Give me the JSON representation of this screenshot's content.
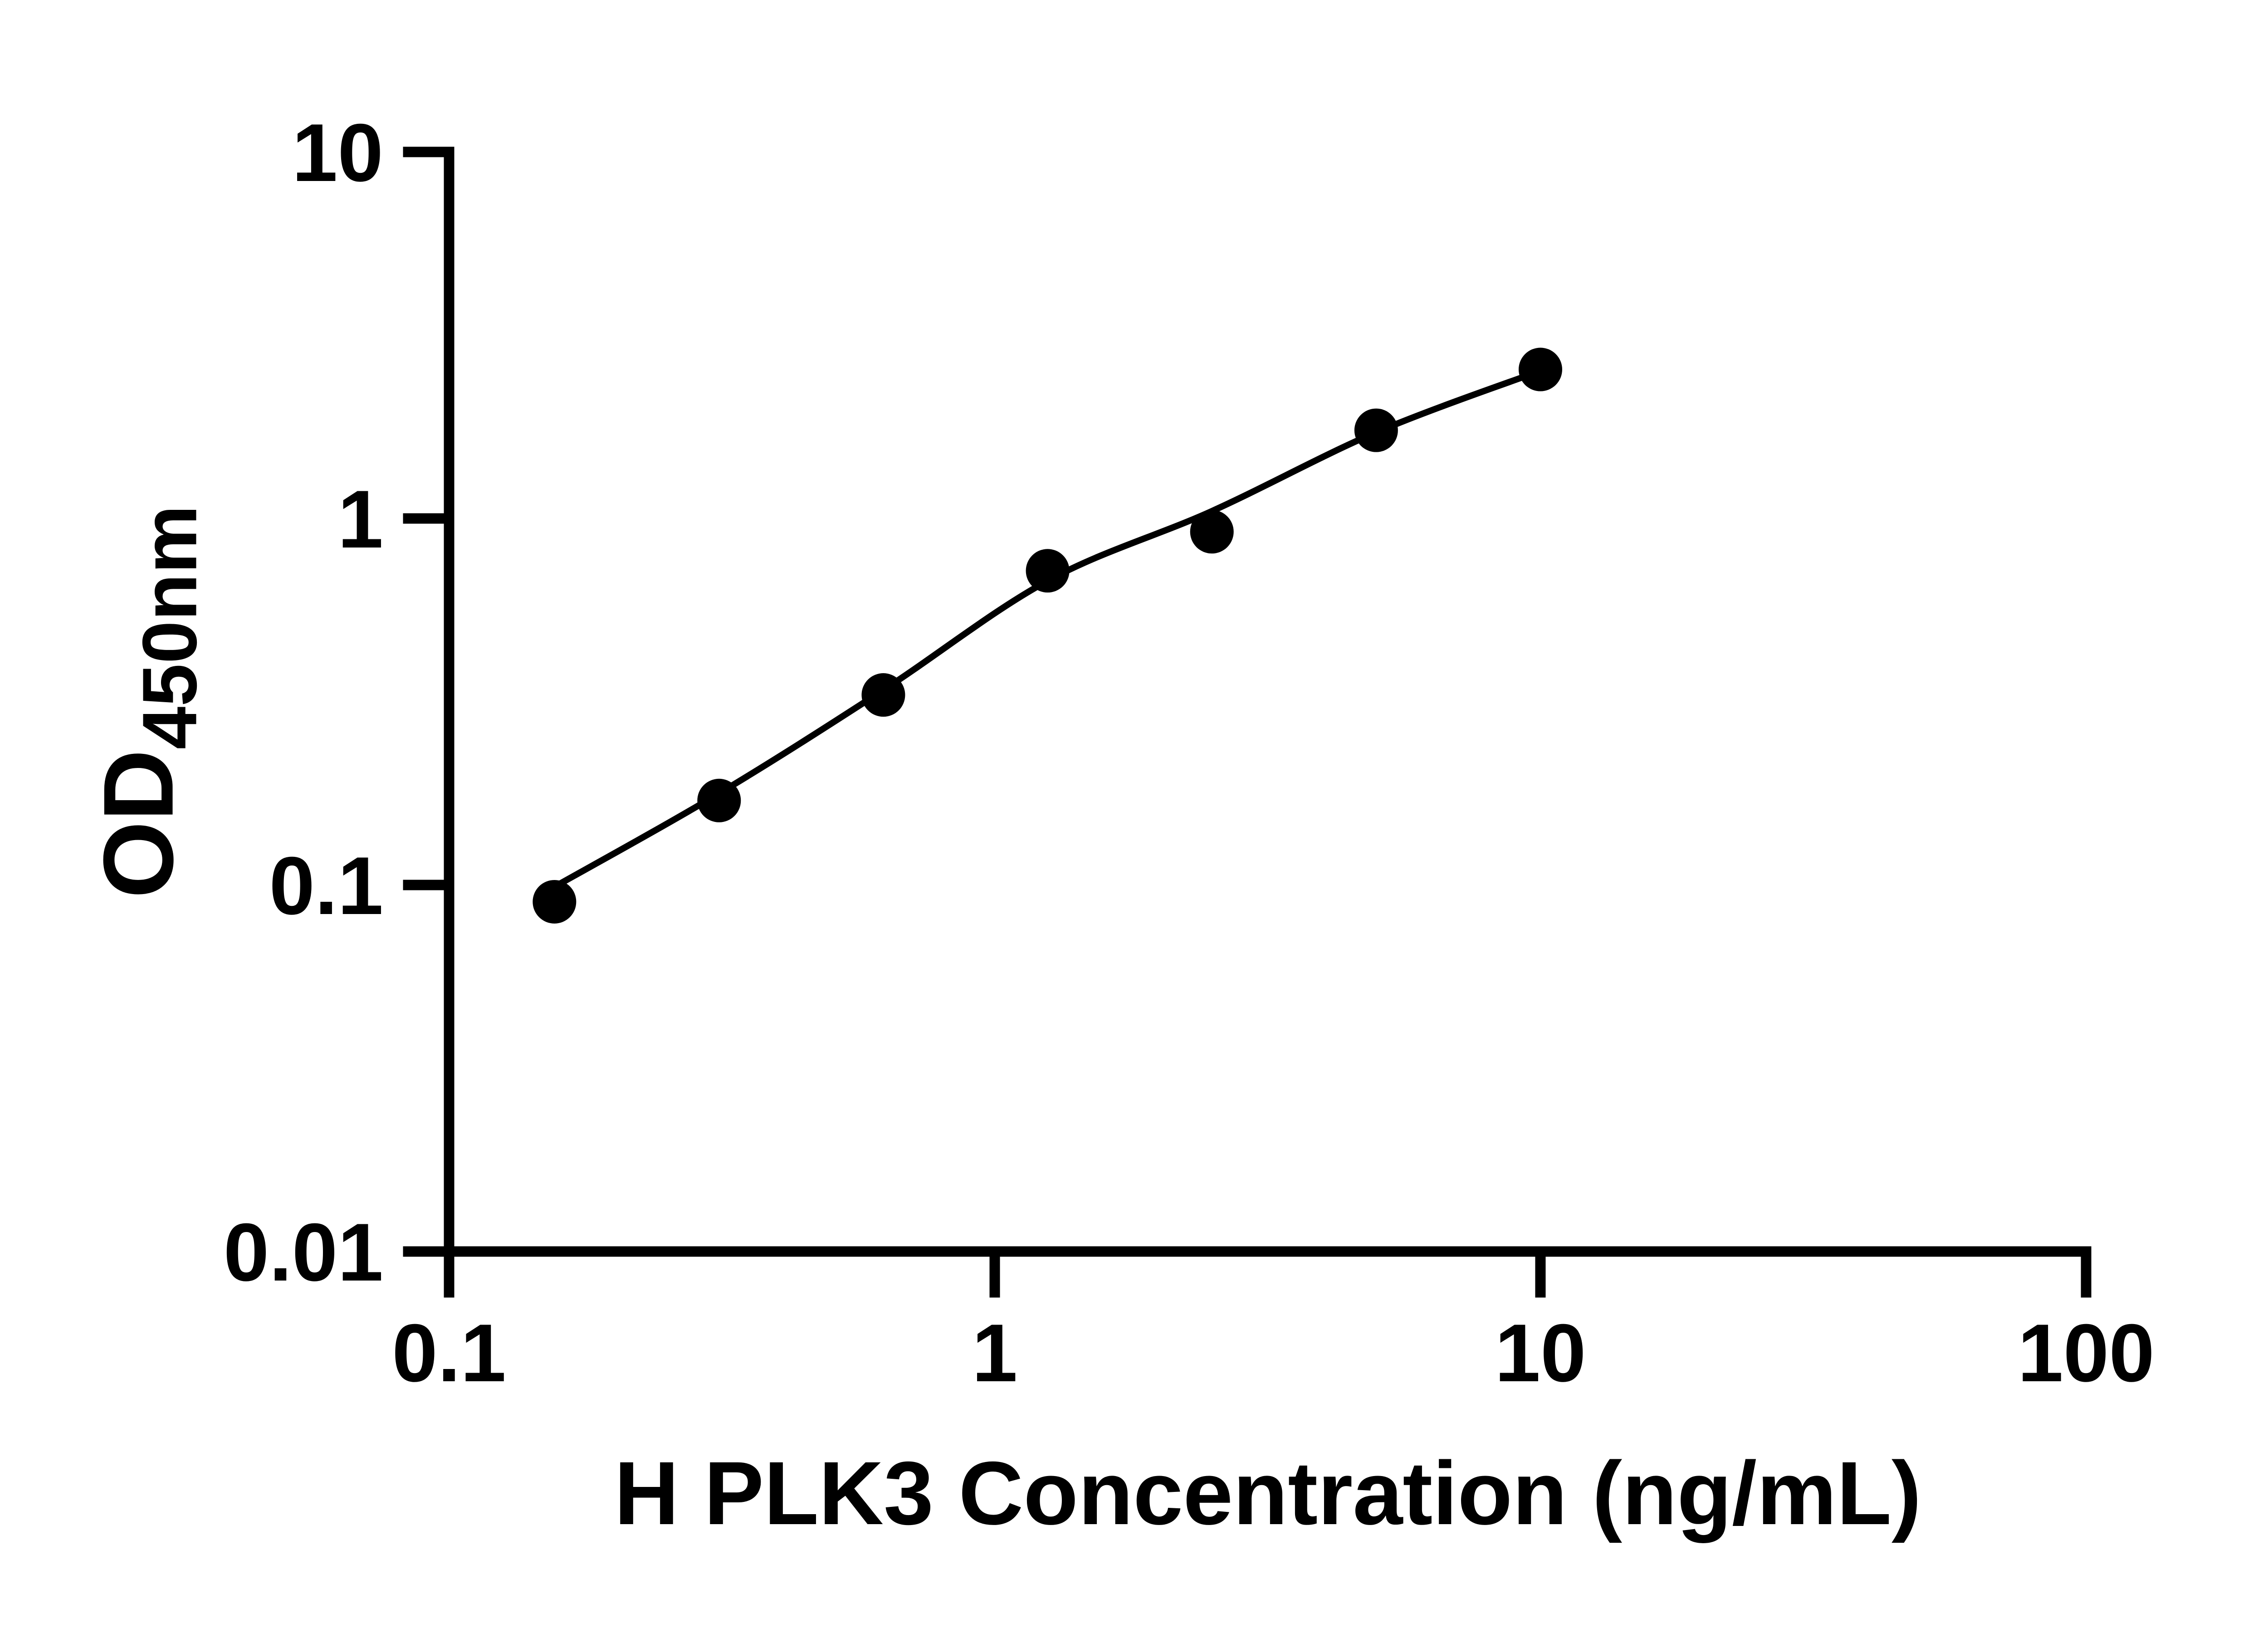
{
  "figure": {
    "background": "#ffffff",
    "ink": "#000000"
  },
  "chart_data": {
    "type": "scatter",
    "xlabel": "H PLK3 Concentration (ng/mL)",
    "ylabel": "OD",
    "ylabel_sub": "450nm",
    "x_scale": "log",
    "y_scale": "log",
    "xlim": [
      0.1,
      100
    ],
    "ylim": [
      0.01,
      10
    ],
    "x_ticks": [
      "0.1",
      "1",
      "10",
      "100"
    ],
    "y_ticks": [
      "10",
      "1",
      "0.1",
      "0.01"
    ],
    "grid": false,
    "legend": false,
    "series": [
      {
        "marker": "circle",
        "color": "#000000",
        "x": [
          0.156,
          0.3125,
          0.625,
          1.25,
          2.5,
          5,
          10
        ],
        "y": [
          0.09,
          0.17,
          0.33,
          0.72,
          0.92,
          1.74,
          2.55
        ]
      }
    ],
    "fit_curve": {
      "u_log10x": [
        -0.8069,
        -0.5051,
        -0.2041,
        0.0969,
        0.3979,
        0.699,
        1.0
      ],
      "v_log10y": [
        -1.005,
        -0.75,
        -0.468,
        -0.17,
        0.02,
        0.235,
        0.403
      ]
    }
  }
}
